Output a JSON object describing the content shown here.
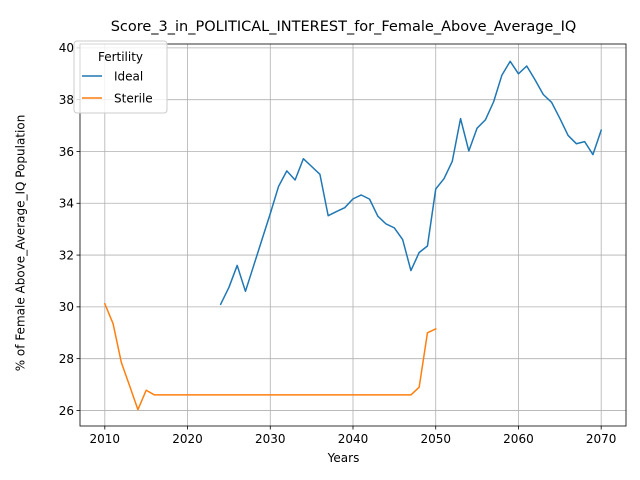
{
  "chart_data": {
    "type": "line",
    "title": "Score_3_in_POLITICAL_INTEREST_for_Female_Above_Average_IQ",
    "xlabel": "Years",
    "ylabel": "% of Female Above_Average_IQ Population",
    "xlim": [
      2007,
      2073
    ],
    "ylim": [
      25.4,
      40.15
    ],
    "xticks": [
      2010,
      2020,
      2030,
      2040,
      2050,
      2060,
      2070
    ],
    "yticks": [
      26,
      28,
      30,
      32,
      34,
      36,
      38,
      40
    ],
    "grid": true,
    "legend": {
      "title": "Fertility",
      "placement": "upper-left"
    },
    "series": [
      {
        "name": "Ideal",
        "color": "#1f77b4",
        "x": [
          2024,
          2025,
          2026,
          2027,
          2028,
          2029,
          2030,
          2031,
          2032,
          2033,
          2034,
          2035,
          2036,
          2037,
          2038,
          2039,
          2040,
          2041,
          2042,
          2043,
          2044,
          2045,
          2046,
          2047,
          2048,
          2049,
          2050,
          2051,
          2052,
          2053,
          2054,
          2055,
          2056,
          2057,
          2058,
          2059,
          2060,
          2061,
          2062,
          2063,
          2064,
          2065,
          2066,
          2067,
          2068,
          2069,
          2070
        ],
        "y": [
          30.1,
          30.75,
          31.6,
          30.6,
          31.6,
          32.6,
          33.6,
          34.65,
          35.25,
          34.9,
          35.72,
          35.42,
          35.12,
          33.52,
          33.68,
          33.83,
          34.17,
          34.32,
          34.16,
          33.5,
          33.2,
          33.05,
          32.6,
          31.4,
          32.1,
          32.35,
          34.55,
          34.95,
          35.62,
          37.27,
          36.02,
          36.9,
          37.22,
          37.92,
          38.95,
          39.48,
          39.0,
          39.3,
          38.77,
          38.2,
          37.9,
          37.28,
          36.62,
          36.3,
          36.38,
          35.88,
          36.82
        ]
      },
      {
        "name": "Sterile",
        "color": "#ff7f0e",
        "x": [
          2010,
          2011,
          2012,
          2013,
          2014,
          2015,
          2016,
          2017,
          2018,
          2019,
          2020,
          2021,
          2022,
          2023,
          2024,
          2025,
          2026,
          2027,
          2028,
          2029,
          2030,
          2031,
          2032,
          2033,
          2034,
          2035,
          2036,
          2037,
          2038,
          2039,
          2040,
          2041,
          2042,
          2043,
          2044,
          2045,
          2046,
          2047,
          2048,
          2049,
          2050
        ],
        "y": [
          30.12,
          29.35,
          27.85,
          26.95,
          26.03,
          26.78,
          26.6,
          26.6,
          26.6,
          26.6,
          26.6,
          26.6,
          26.6,
          26.6,
          26.6,
          26.6,
          26.6,
          26.6,
          26.6,
          26.6,
          26.6,
          26.6,
          26.6,
          26.6,
          26.6,
          26.6,
          26.6,
          26.6,
          26.6,
          26.6,
          26.6,
          26.6,
          26.6,
          26.6,
          26.6,
          26.6,
          26.6,
          26.6,
          26.9,
          29.0,
          29.15
        ]
      }
    ]
  }
}
